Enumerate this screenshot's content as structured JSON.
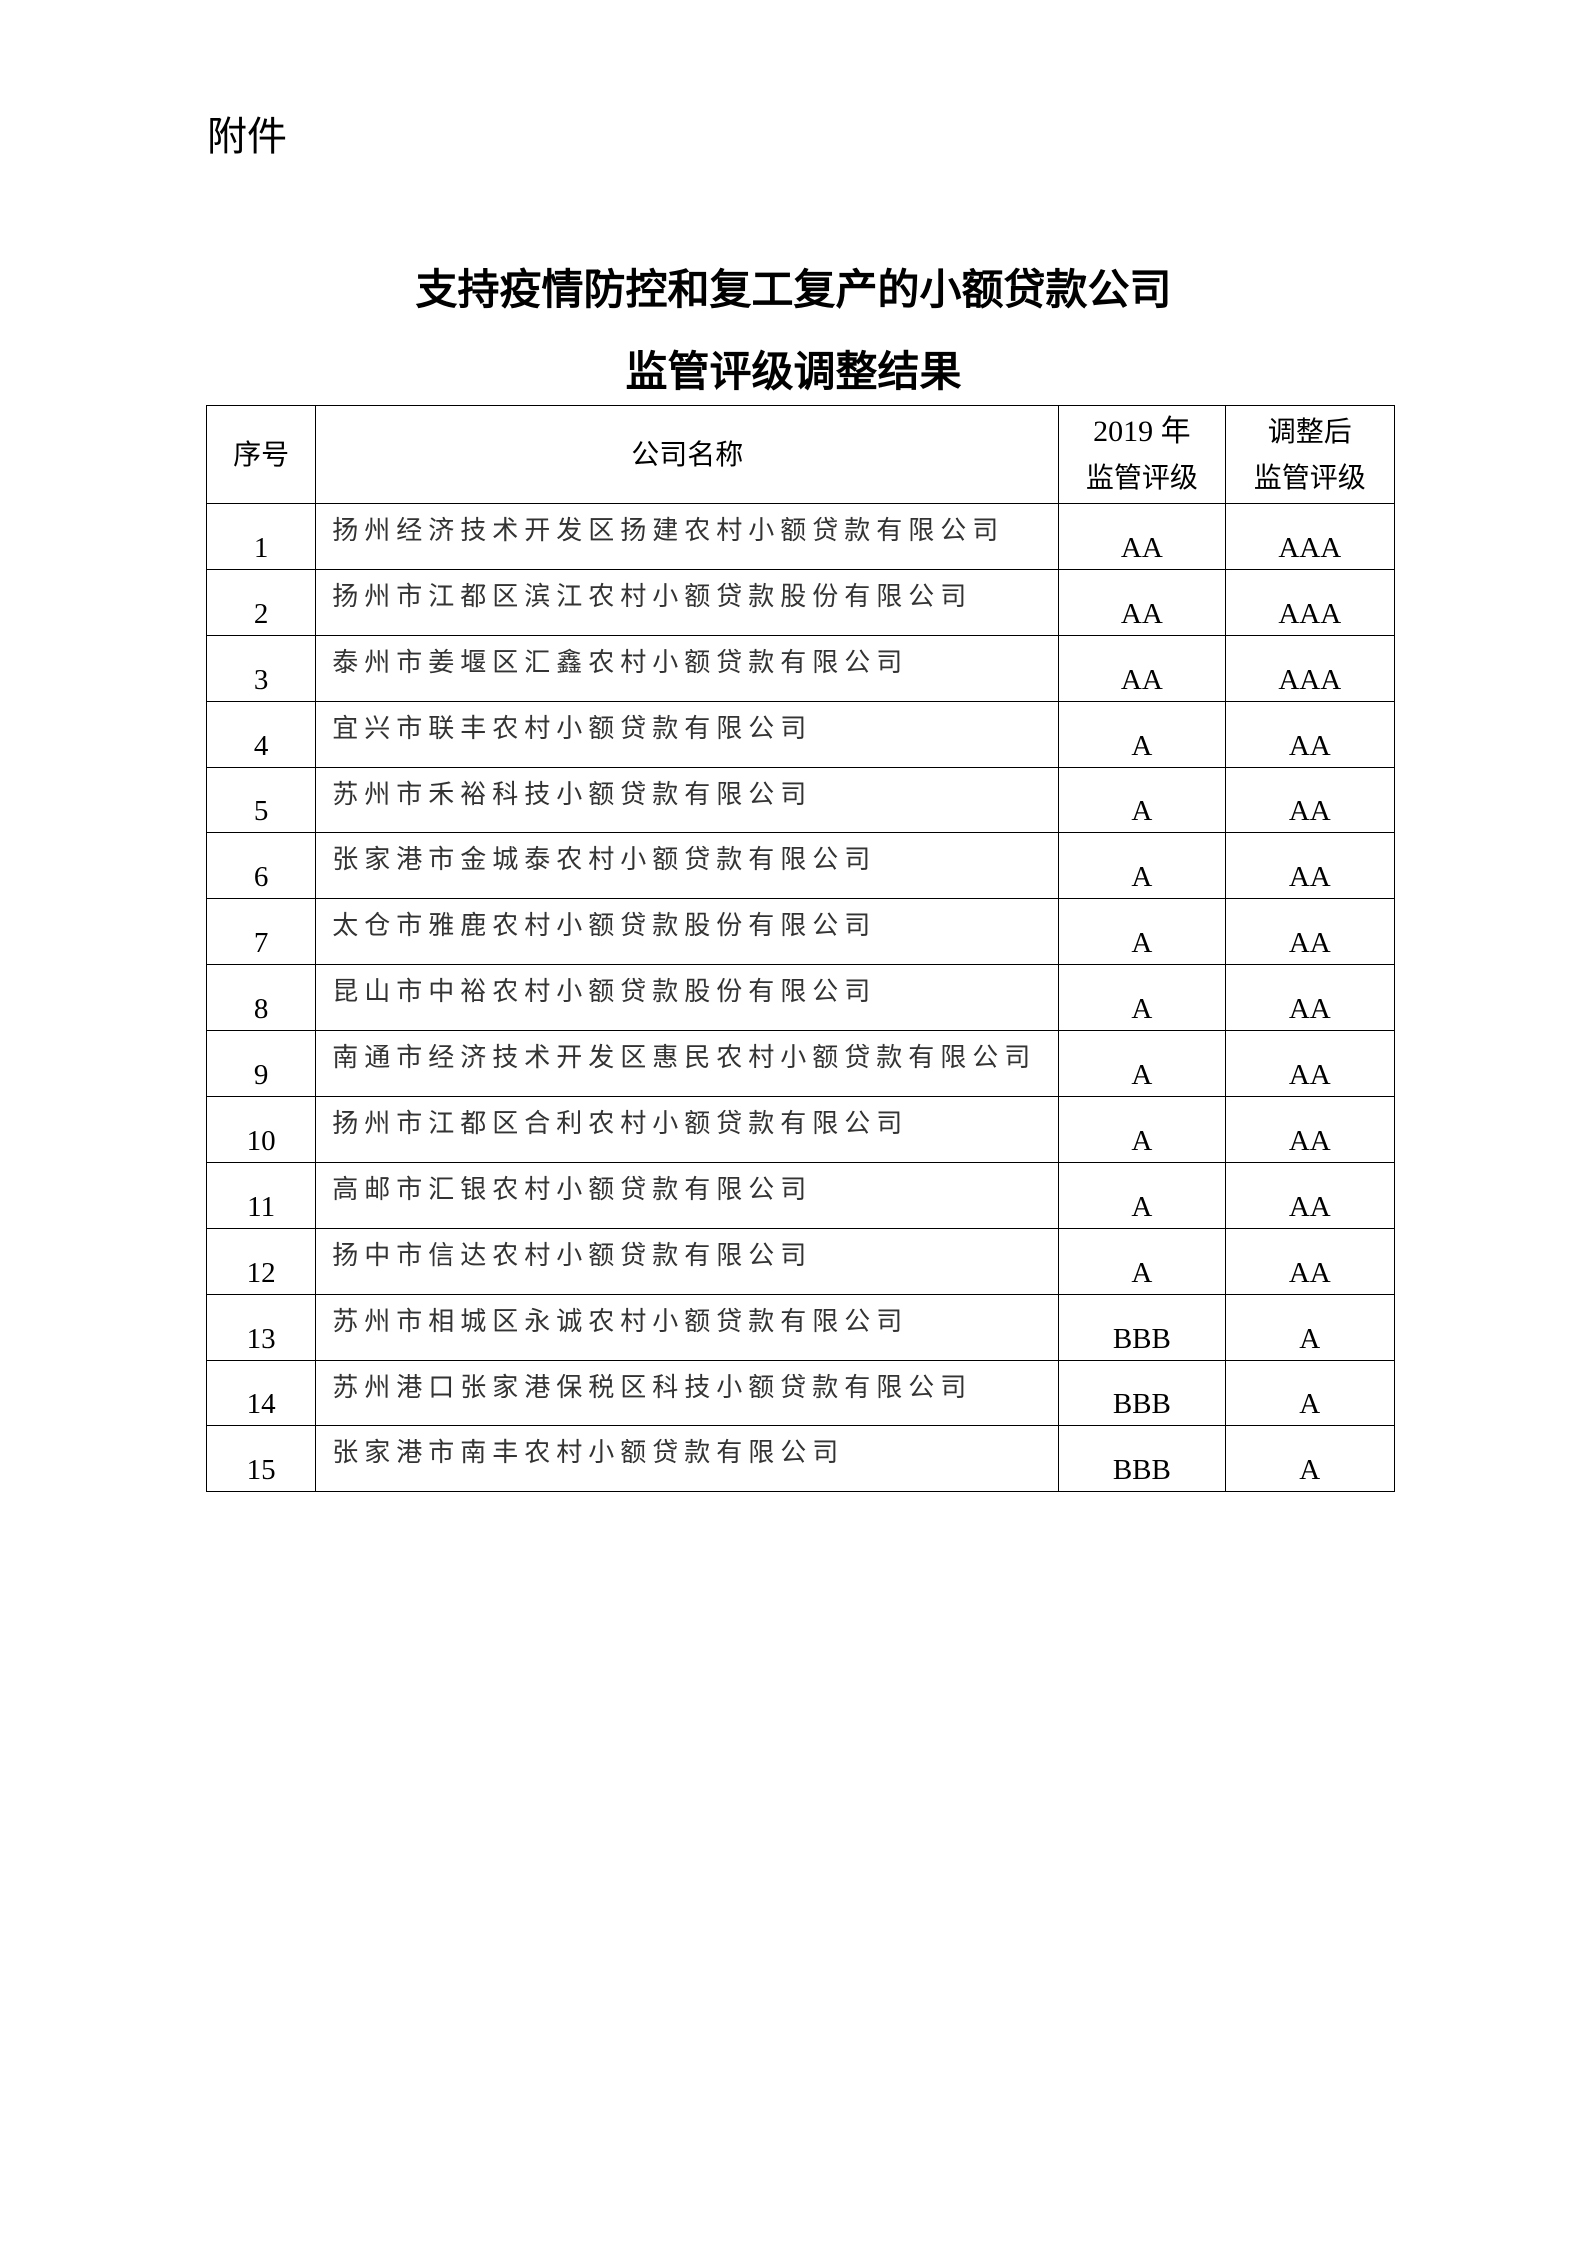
{
  "attachment_label": "附件",
  "title_line1": "支持疫情防控和复工复产的小额贷款公司",
  "title_line2": "监管评级调整结果",
  "table": {
    "headers": {
      "no": "序号",
      "company": "公司名称",
      "rating2019_line1": "2019 年",
      "rating2019_line2": "监管评级",
      "adjusted_line1": "调整后",
      "adjusted_line2": "监管评级"
    },
    "rows": [
      {
        "no": "1",
        "company": "扬州经济技术开发区扬建农村小额贷款有限公司",
        "r2019": "AA",
        "adjusted": "AAA"
      },
      {
        "no": "2",
        "company": "扬州市江都区滨江农村小额贷款股份有限公司",
        "r2019": "AA",
        "adjusted": "AAA"
      },
      {
        "no": "3",
        "company": "泰州市姜堰区汇鑫农村小额贷款有限公司",
        "r2019": "AA",
        "adjusted": "AAA"
      },
      {
        "no": "4",
        "company": "宜兴市联丰农村小额贷款有限公司",
        "r2019": "A",
        "adjusted": "AA"
      },
      {
        "no": "5",
        "company": "苏州市禾裕科技小额贷款有限公司",
        "r2019": "A",
        "adjusted": "AA"
      },
      {
        "no": "6",
        "company": "张家港市金城泰农村小额贷款有限公司",
        "r2019": "A",
        "adjusted": "AA"
      },
      {
        "no": "7",
        "company": "太仓市雅鹿农村小额贷款股份有限公司",
        "r2019": "A",
        "adjusted": "AA"
      },
      {
        "no": "8",
        "company": "昆山市中裕农村小额贷款股份有限公司",
        "r2019": "A",
        "adjusted": "AA"
      },
      {
        "no": "9",
        "company": "南通市经济技术开发区惠民农村小额贷款有限公司",
        "r2019": "A",
        "adjusted": "AA"
      },
      {
        "no": "10",
        "company": "扬州市江都区合利农村小额贷款有限公司",
        "r2019": "A",
        "adjusted": "AA"
      },
      {
        "no": "11",
        "company": "高邮市汇银农村小额贷款有限公司",
        "r2019": "A",
        "adjusted": "AA"
      },
      {
        "no": "12",
        "company": "扬中市信达农村小额贷款有限公司",
        "r2019": "A",
        "adjusted": "AA"
      },
      {
        "no": "13",
        "company": "苏州市相城区永诚农村小额贷款有限公司",
        "r2019": "BBB",
        "adjusted": "A"
      },
      {
        "no": "14",
        "company": "苏州港口张家港保税区科技小额贷款有限公司",
        "r2019": "BBB",
        "adjusted": "A"
      },
      {
        "no": "15",
        "company": "张家港市南丰农村小额贷款有限公司",
        "r2019": "BBB",
        "adjusted": "A"
      }
    ]
  }
}
